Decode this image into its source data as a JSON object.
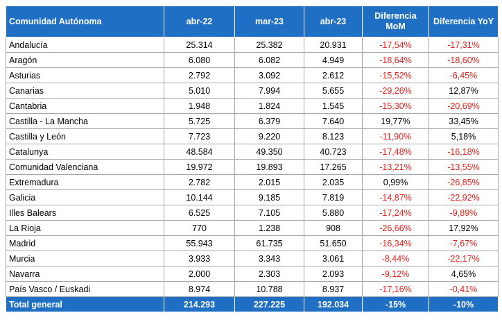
{
  "table": {
    "header": [
      "Comunidad Autónoma",
      "abr-22",
      "mar-23",
      "abr-23",
      "Diferencia MoM",
      "Diferencia YoY"
    ],
    "rows": [
      [
        "Andalucía",
        "25.314",
        "25.382",
        "20.931",
        "-17,54%",
        "-17,31%"
      ],
      [
        "Aragón",
        "6.080",
        "6.082",
        "4.949",
        "-18,64%",
        "-18,60%"
      ],
      [
        "Asturias",
        "2.792",
        "3.092",
        "2.612",
        "-15,52%",
        "-6,45%"
      ],
      [
        "Canarias",
        "5.010",
        "7.994",
        "5.655",
        "-29,26%",
        "12,87%"
      ],
      [
        "Cantabria",
        "1.948",
        "1.824",
        "1.545",
        "-15,30%",
        "-20,69%"
      ],
      [
        "Castilla - La Mancha",
        "5.725",
        "6.379",
        "7.640",
        "19,77%",
        "33,45%"
      ],
      [
        "Castilla y León",
        "7.723",
        "9.220",
        "8.123",
        "-11,90%",
        "5,18%"
      ],
      [
        "Catalunya",
        "48.584",
        "49.350",
        "40.723",
        "-17,48%",
        "-16,18%"
      ],
      [
        "Comunidad Valenciana",
        "19.972",
        "19.893",
        "17.265",
        "-13,21%",
        "-13,55%"
      ],
      [
        "Extremadura",
        "2.782",
        "2.015",
        "2.035",
        "0,99%",
        "-26,85%"
      ],
      [
        "Galicia",
        "10.144",
        "9.185",
        "7.819",
        "-14,87%",
        "-22,92%"
      ],
      [
        "Illes Balears",
        "6.525",
        "7.105",
        "5.880",
        "-17,24%",
        "-9,89%"
      ],
      [
        "La Rioja",
        "770",
        "1.238",
        "908",
        "-26,66%",
        "17,92%"
      ],
      [
        "Madrid",
        "55.943",
        "61.735",
        "51.650",
        "-16,34%",
        "-7,67%"
      ],
      [
        "Murcia",
        "3.933",
        "3.343",
        "3.061",
        "-8,44%",
        "-22,17%"
      ],
      [
        "Navarra",
        "2.000",
        "2.303",
        "2.093",
        "-9,12%",
        "4,65%"
      ],
      [
        "País Vasco / Euskadi",
        "8.974",
        "10.788",
        "8.937",
        "-17,16%",
        "-0,41%"
      ]
    ],
    "total": [
      "Total general",
      "214.293",
      "227.225",
      "192.034",
      "-15%",
      "-10%"
    ]
  }
}
